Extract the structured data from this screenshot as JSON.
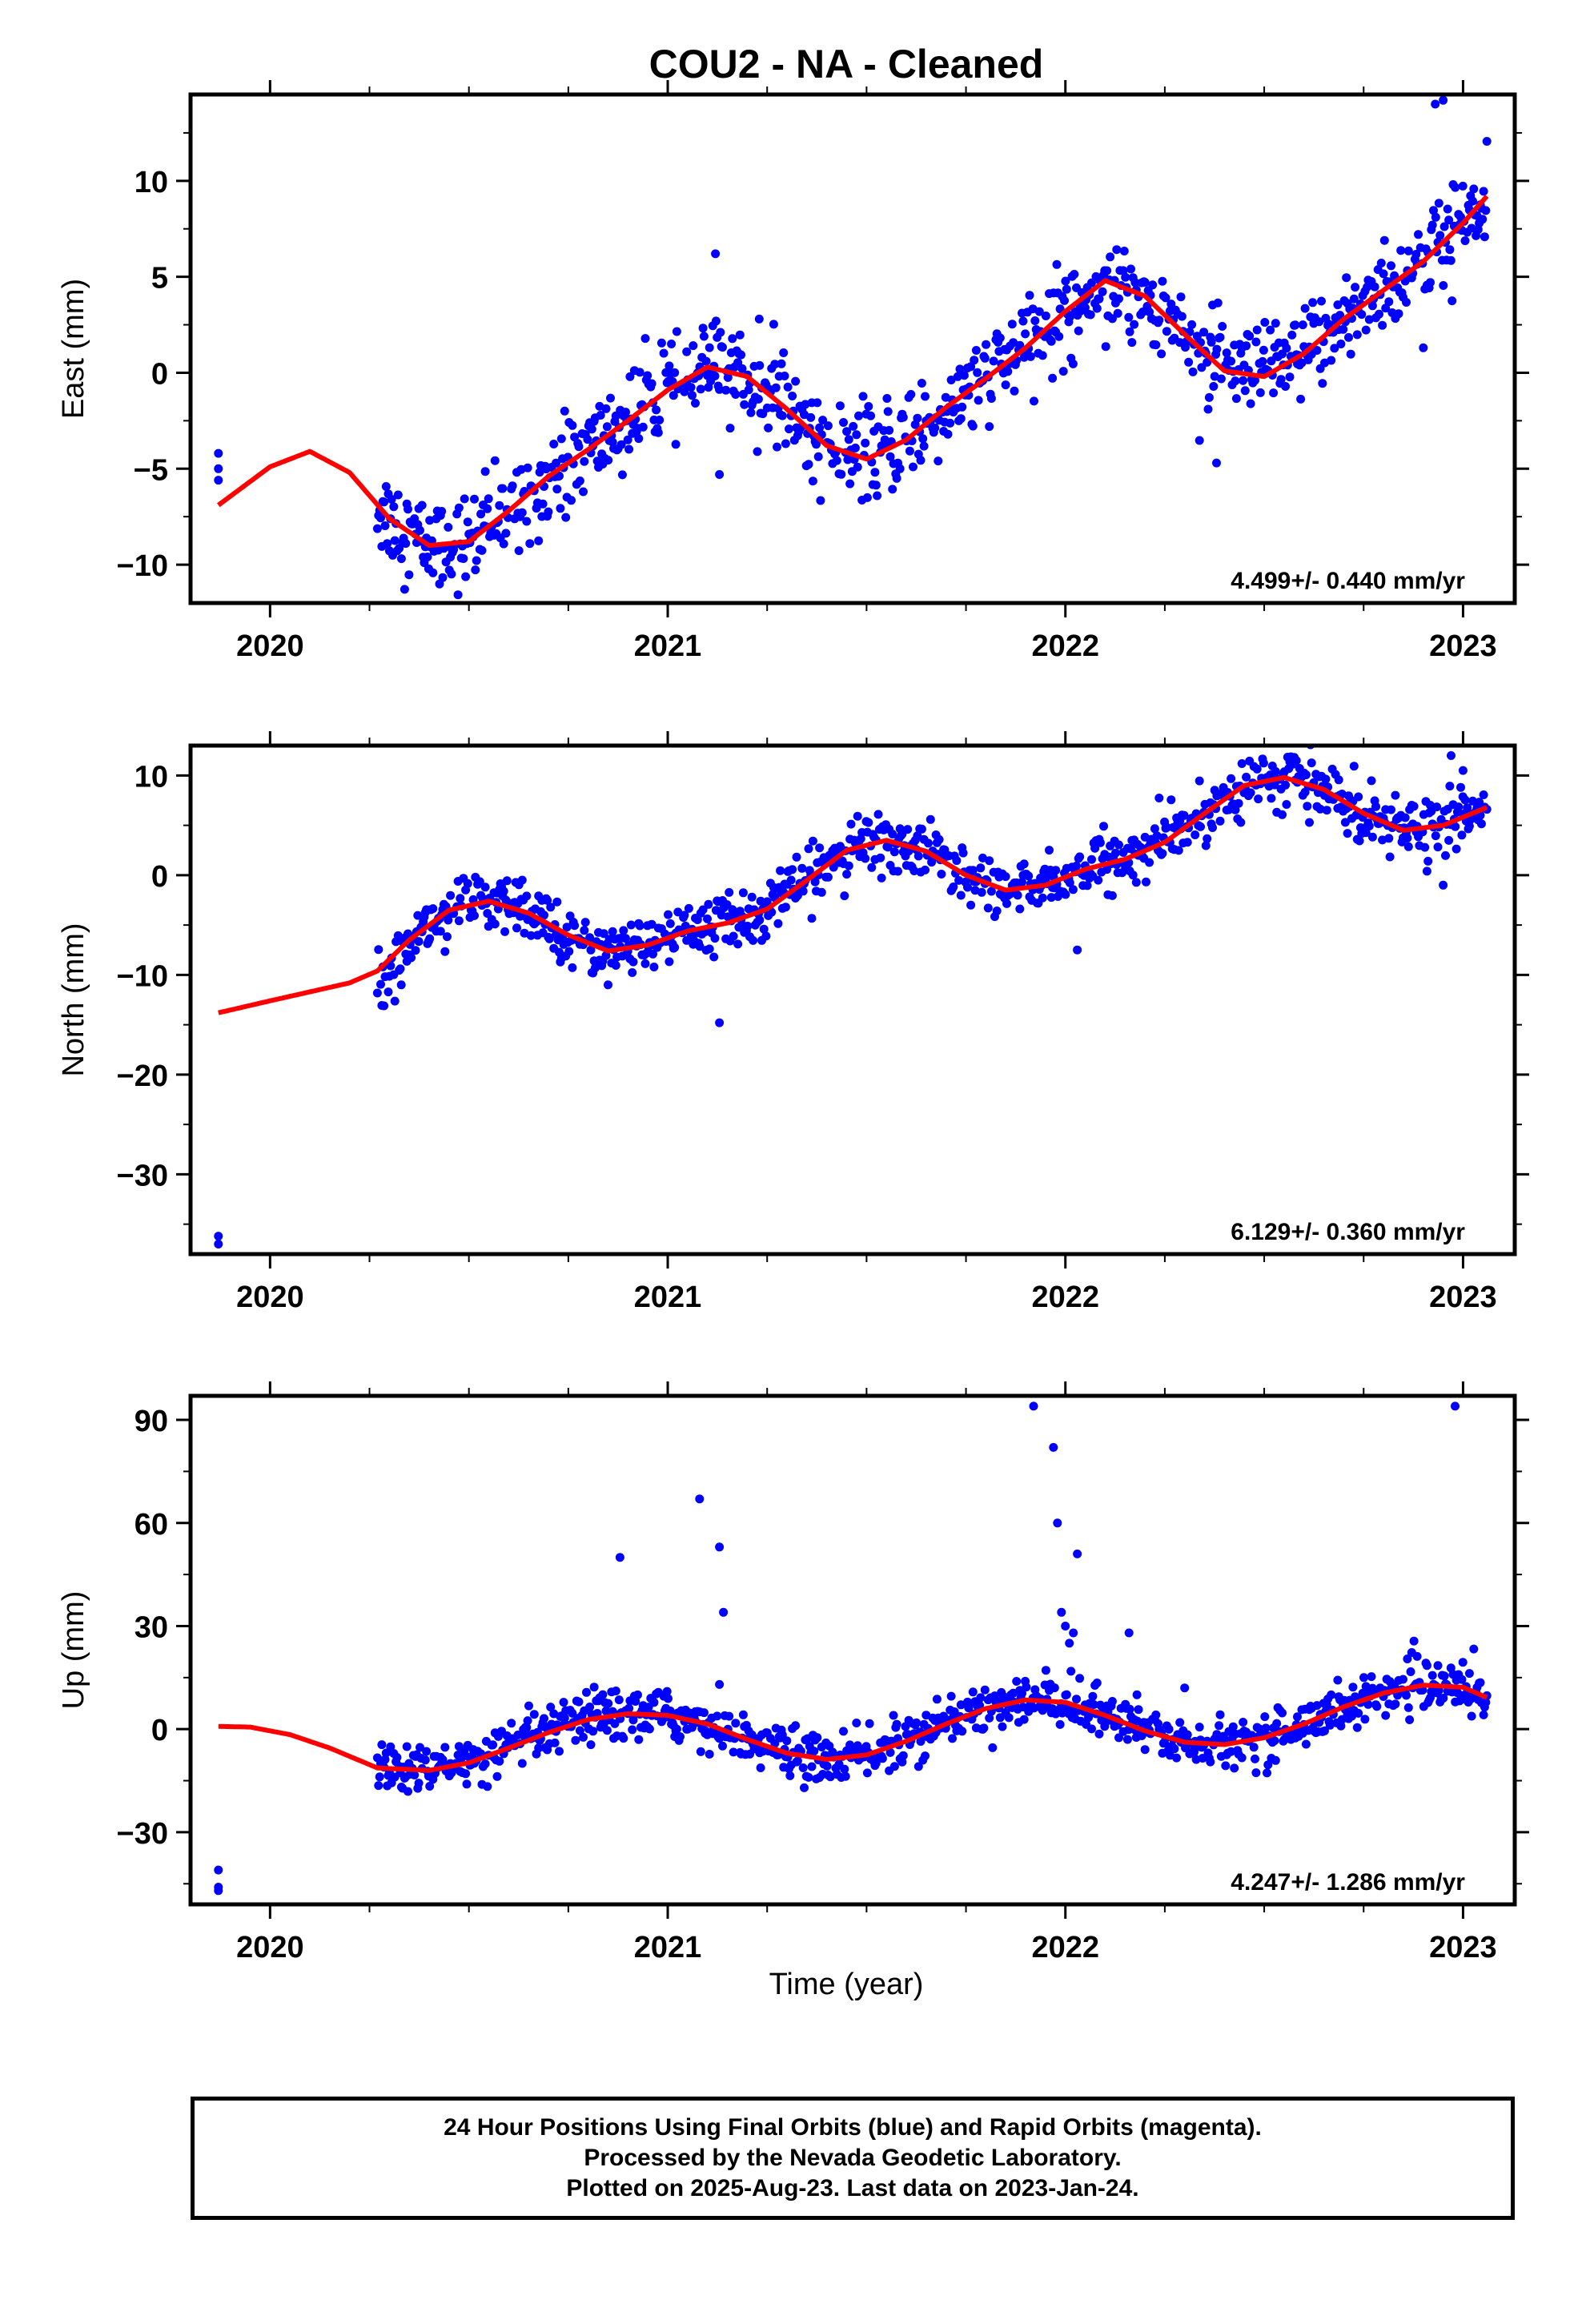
{
  "title": "COU2  - NA - Cleaned",
  "colors": {
    "points": "#0000ff",
    "model": "#ff0000",
    "frame": "#000000"
  },
  "xlabel": "Time (year)",
  "footer": {
    "line1": "24 Hour Positions Using Final Orbits (blue) and Rapid Orbits (magenta).",
    "line2": "Processed by the Nevada Geodetic Laboratory.",
    "line3": "Plotted on 2025-Aug-23. Last data on 2023-Jan-24."
  },
  "chart_data": [
    {
      "type": "scatter",
      "ylabel": "East (mm)",
      "rate_label": "4.499+/- 0.440 mm/yr",
      "xlim": [
        2019.8,
        2023.13
      ],
      "ylim": [
        -12,
        14.5
      ],
      "xticks": [
        2020,
        2021,
        2022,
        2023
      ],
      "yticks": [
        -10,
        -5,
        0,
        5,
        10
      ],
      "series": [
        {
          "kind": "points",
          "trend": {
            "rate": 4.499,
            "offset": -3.0,
            "amp1": 3.2,
            "phase1": 2020.1,
            "noise": 1.2,
            "start": 2020.27,
            "end": 2023.06
          },
          "outliers": [
            [
              2019.87,
              -4.2
            ],
            [
              2019.87,
              -5.0
            ],
            [
              2019.87,
              -5.6
            ],
            [
              2021.12,
              6.2
            ],
            [
              2021.23,
              2.8
            ],
            [
              2022.9,
              1.3
            ],
            [
              2022.93,
              14.0
            ],
            [
              2022.95,
              14.2
            ],
            [
              2021.13,
              -5.3
            ],
            [
              2022.38,
              -4.7
            ]
          ]
        },
        {
          "kind": "model",
          "points": [
            [
              2019.87,
              -6.9
            ],
            [
              2020.0,
              -4.9
            ],
            [
              2020.1,
              -4.1
            ],
            [
              2020.2,
              -5.2
            ],
            [
              2020.3,
              -7.6
            ],
            [
              2020.4,
              -9.0
            ],
            [
              2020.5,
              -8.8
            ],
            [
              2020.6,
              -7.2
            ],
            [
              2020.7,
              -5.4
            ],
            [
              2020.8,
              -4.0
            ],
            [
              2020.9,
              -2.5
            ],
            [
              2021.0,
              -0.9
            ],
            [
              2021.1,
              0.3
            ],
            [
              2021.2,
              -0.2
            ],
            [
              2021.3,
              -1.9
            ],
            [
              2021.4,
              -3.8
            ],
            [
              2021.5,
              -4.5
            ],
            [
              2021.6,
              -3.5
            ],
            [
              2021.7,
              -1.8
            ],
            [
              2021.8,
              -0.3
            ],
            [
              2021.9,
              1.3
            ],
            [
              2022.0,
              3.2
            ],
            [
              2022.1,
              4.8
            ],
            [
              2022.2,
              4.0
            ],
            [
              2022.3,
              2.0
            ],
            [
              2022.4,
              0.1
            ],
            [
              2022.5,
              -0.2
            ],
            [
              2022.6,
              1.0
            ],
            [
              2022.7,
              2.8
            ],
            [
              2022.8,
              4.3
            ],
            [
              2022.9,
              5.8
            ],
            [
              2023.0,
              7.8
            ],
            [
              2023.06,
              9.2
            ]
          ]
        }
      ]
    },
    {
      "type": "scatter",
      "ylabel": "North (mm)",
      "rate_label": "6.129+/- 0.360 mm/yr",
      "xlim": [
        2019.8,
        2023.13
      ],
      "ylim": [
        -38,
        13
      ],
      "xticks": [
        2020,
        2021,
        2022,
        2023
      ],
      "yticks": [
        -30,
        -20,
        -10,
        0,
        10
      ],
      "series": [
        {
          "kind": "points",
          "trend": {
            "rate": 6.129,
            "offset": -7.0,
            "amp1": 3.0,
            "phase1": 2020.55,
            "noise": 1.4,
            "start": 2020.27,
            "end": 2023.06
          },
          "outliers": [
            [
              2019.87,
              -36.2
            ],
            [
              2019.87,
              -37.0
            ],
            [
              2021.13,
              -14.8
            ],
            [
              2022.03,
              -7.5
            ],
            [
              2022.95,
              -1.0
            ],
            [
              2022.97,
              12.0
            ],
            [
              2023.0,
              10.5
            ],
            [
              2020.33,
              -11.0
            ],
            [
              2020.85,
              -11.0
            ]
          ]
        },
        {
          "kind": "model",
          "points": [
            [
              2019.87,
              -13.8
            ],
            [
              2020.0,
              -12.6
            ],
            [
              2020.1,
              -11.7
            ],
            [
              2020.2,
              -10.8
            ],
            [
              2020.27,
              -9.6
            ],
            [
              2020.35,
              -6.5
            ],
            [
              2020.45,
              -3.5
            ],
            [
              2020.55,
              -2.6
            ],
            [
              2020.65,
              -3.8
            ],
            [
              2020.75,
              -6.0
            ],
            [
              2020.85,
              -7.6
            ],
            [
              2020.95,
              -7.0
            ],
            [
              2021.05,
              -5.6
            ],
            [
              2021.15,
              -4.8
            ],
            [
              2021.25,
              -3.4
            ],
            [
              2021.35,
              -0.5
            ],
            [
              2021.45,
              2.5
            ],
            [
              2021.55,
              3.5
            ],
            [
              2021.65,
              2.4
            ],
            [
              2021.75,
              0.0
            ],
            [
              2021.85,
              -1.5
            ],
            [
              2021.95,
              -1.0
            ],
            [
              2022.05,
              0.6
            ],
            [
              2022.15,
              1.6
            ],
            [
              2022.25,
              3.3
            ],
            [
              2022.35,
              6.2
            ],
            [
              2022.45,
              9.0
            ],
            [
              2022.55,
              9.8
            ],
            [
              2022.65,
              8.6
            ],
            [
              2022.75,
              6.2
            ],
            [
              2022.85,
              4.5
            ],
            [
              2022.95,
              5.0
            ],
            [
              2023.06,
              6.8
            ]
          ]
        }
      ]
    },
    {
      "type": "scatter",
      "ylabel": "Up (mm)",
      "rate_label": "4.247+/- 1.286 mm/yr",
      "xlim": [
        2019.8,
        2023.13
      ],
      "ylim": [
        -51,
        97
      ],
      "xticks": [
        2020,
        2021,
        2022,
        2023
      ],
      "yticks": [
        -30,
        0,
        30,
        60,
        90
      ],
      "series": [
        {
          "kind": "points",
          "trend": {
            "rate": 4.247,
            "offset": -2.0,
            "amp1": 8.0,
            "phase1": 2020.9,
            "noise": 3.5,
            "start": 2020.27,
            "end": 2023.06
          },
          "outliers": [
            [
              2019.87,
              -41
            ],
            [
              2019.87,
              -46
            ],
            [
              2019.87,
              -47
            ],
            [
              2020.88,
              50
            ],
            [
              2021.08,
              67
            ],
            [
              2021.13,
              53
            ],
            [
              2021.14,
              34
            ],
            [
              2021.13,
              13
            ],
            [
              2021.92,
              94
            ],
            [
              2021.97,
              82
            ],
            [
              2021.98,
              60
            ],
            [
              2022.03,
              51
            ],
            [
              2021.99,
              34
            ],
            [
              2022.0,
              30
            ],
            [
              2022.02,
              28
            ],
            [
              2022.01,
              25
            ],
            [
              2022.16,
              28
            ],
            [
              2022.98,
              94
            ],
            [
              2022.18,
              10
            ],
            [
              2022.3,
              12
            ]
          ]
        },
        {
          "kind": "model",
          "points": [
            [
              2019.87,
              0.8
            ],
            [
              2019.95,
              0.6
            ],
            [
              2020.05,
              -1.6
            ],
            [
              2020.15,
              -5.5
            ],
            [
              2020.27,
              -11.3
            ],
            [
              2020.4,
              -12.0
            ],
            [
              2020.5,
              -9.8
            ],
            [
              2020.6,
              -5.5
            ],
            [
              2020.7,
              -1.0
            ],
            [
              2020.8,
              2.8
            ],
            [
              2020.9,
              4.5
            ],
            [
              2021.0,
              4.0
            ],
            [
              2021.1,
              1.5
            ],
            [
              2021.2,
              -3.0
            ],
            [
              2021.3,
              -7.0
            ],
            [
              2021.4,
              -8.8
            ],
            [
              2021.5,
              -7.5
            ],
            [
              2021.6,
              -3.5
            ],
            [
              2021.7,
              1.5
            ],
            [
              2021.8,
              6.0
            ],
            [
              2021.9,
              8.5
            ],
            [
              2022.0,
              7.8
            ],
            [
              2022.1,
              4.0
            ],
            [
              2022.2,
              -0.5
            ],
            [
              2022.3,
              -3.8
            ],
            [
              2022.4,
              -4.5
            ],
            [
              2022.5,
              -2.5
            ],
            [
              2022.6,
              1.5
            ],
            [
              2022.7,
              6.5
            ],
            [
              2022.8,
              10.5
            ],
            [
              2022.9,
              12.8
            ],
            [
              2023.0,
              12.2
            ],
            [
              2023.06,
              9.2
            ]
          ]
        }
      ]
    }
  ]
}
